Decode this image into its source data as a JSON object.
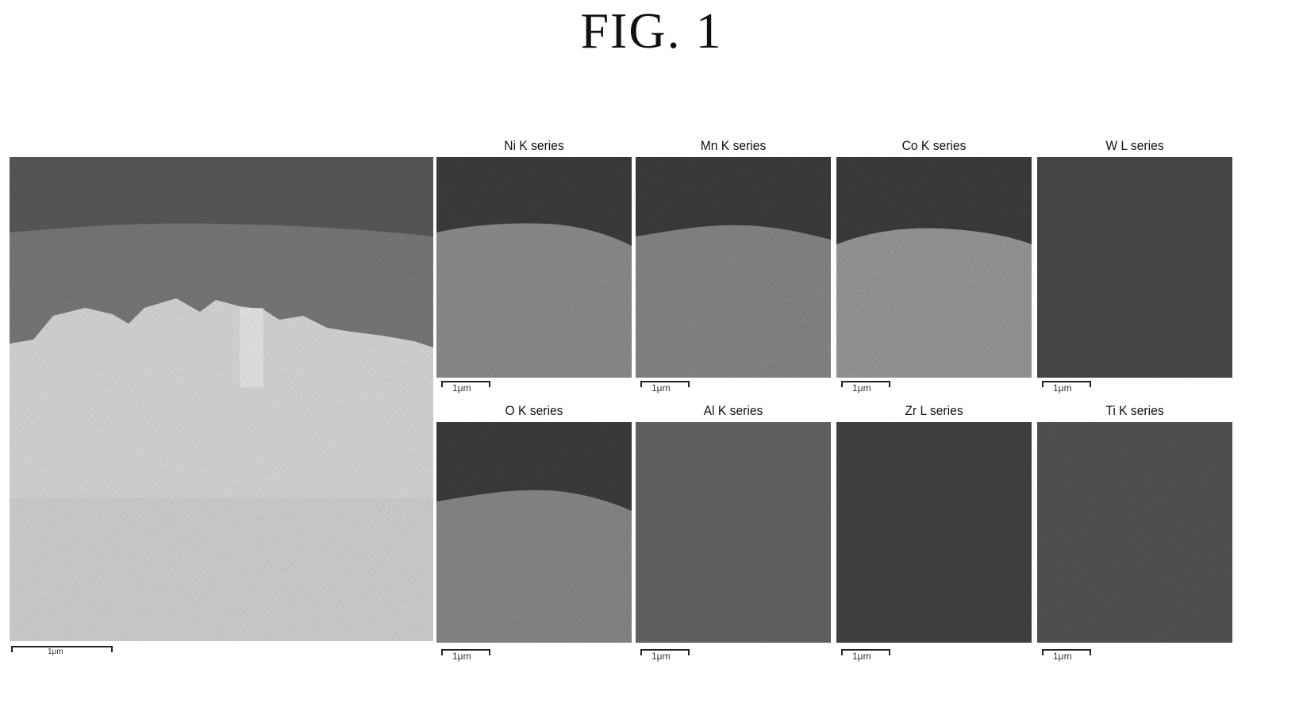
{
  "figure": {
    "title": "FIG. 1"
  },
  "sem_image": {
    "scale_label": "1μm"
  },
  "eds_maps": [
    {
      "element": "Ni K series",
      "scale_label": "1μm",
      "color": "#8f8f8f"
    },
    {
      "element": "Mn K series",
      "scale_label": "1μm",
      "color": "#888888"
    },
    {
      "element": "Co K series",
      "scale_label": "1μm",
      "color": "#9a9a9a"
    },
    {
      "element": "W L series",
      "scale_label": "1μm",
      "color": "#4a4a4a"
    },
    {
      "element": "O K series",
      "scale_label": "1μm",
      "color": "#8a8a8a"
    },
    {
      "element": "Al K series",
      "scale_label": "1μm",
      "color": "#666666"
    },
    {
      "element": "Zr L series",
      "scale_label": "1μm",
      "color": "#444444"
    },
    {
      "element": "Ti K series",
      "scale_label": "1μm",
      "color": "#555555"
    }
  ]
}
